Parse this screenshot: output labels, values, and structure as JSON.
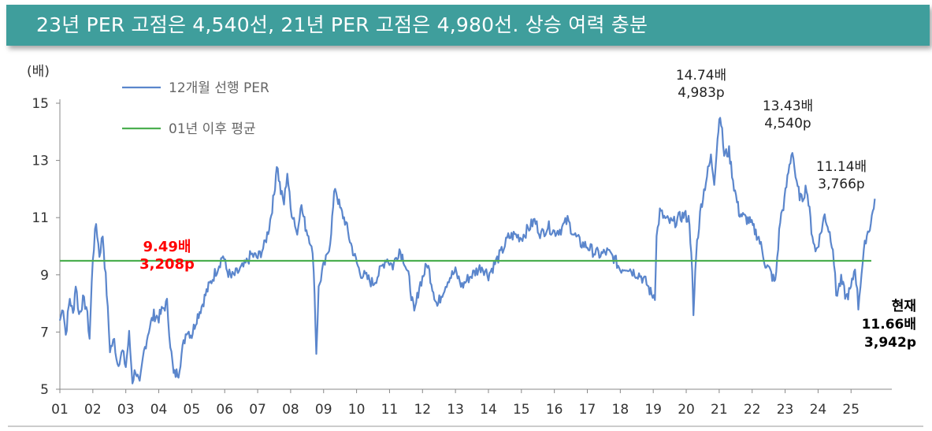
{
  "title": "23년 PER 고점은 4,540선, 21년 PER 고점은 4,980선. 상승 여력 충분",
  "chart_data": {
    "type": "line",
    "ylabel": "(배)",
    "ylim": [
      5,
      15
    ],
    "yticks": [
      "5",
      "7",
      "9",
      "11",
      "13",
      "15"
    ],
    "xticks": [
      "01",
      "02",
      "03",
      "04",
      "05",
      "06",
      "07",
      "08",
      "09",
      "10",
      "11",
      "12",
      "13",
      "14",
      "15",
      "16",
      "17",
      "18",
      "19",
      "20",
      "21",
      "22",
      "23",
      "24",
      "25"
    ],
    "series": [
      {
        "name": "12개월 선행 PER",
        "color": "#5b86cc",
        "points": [
          [
            2001.0,
            7.4
          ],
          [
            2001.1,
            7.9
          ],
          [
            2001.18,
            6.9
          ],
          [
            2001.3,
            8.2
          ],
          [
            2001.4,
            7.6
          ],
          [
            2001.48,
            8.7
          ],
          [
            2001.58,
            7.6
          ],
          [
            2001.7,
            8.1
          ],
          [
            2001.8,
            7.9
          ],
          [
            2001.9,
            6.8
          ],
          [
            2002.0,
            9.6
          ],
          [
            2002.1,
            10.8
          ],
          [
            2002.2,
            9.7
          ],
          [
            2002.3,
            10.4
          ],
          [
            2002.42,
            8.4
          ],
          [
            2002.52,
            6.4
          ],
          [
            2002.65,
            6.7
          ],
          [
            2002.75,
            5.9
          ],
          [
            2002.9,
            6.3
          ],
          [
            2003.0,
            5.8
          ],
          [
            2003.1,
            6.9
          ],
          [
            2003.2,
            5.3
          ],
          [
            2003.3,
            5.7
          ],
          [
            2003.42,
            5.1
          ],
          [
            2003.55,
            6.3
          ],
          [
            2003.7,
            7.1
          ],
          [
            2003.85,
            7.6
          ],
          [
            2004.0,
            7.5
          ],
          [
            2004.12,
            7.8
          ],
          [
            2004.25,
            8.0
          ],
          [
            2004.35,
            6.6
          ],
          [
            2004.45,
            5.5
          ],
          [
            2004.6,
            5.6
          ],
          [
            2004.72,
            6.4
          ],
          [
            2004.85,
            7.1
          ],
          [
            2005.0,
            6.9
          ],
          [
            2005.15,
            7.5
          ],
          [
            2005.3,
            7.9
          ],
          [
            2005.45,
            8.4
          ],
          [
            2005.6,
            8.8
          ],
          [
            2005.8,
            9.3
          ],
          [
            2005.95,
            9.7
          ],
          [
            2006.05,
            9.2
          ],
          [
            2006.2,
            8.9
          ],
          [
            2006.4,
            9.1
          ],
          [
            2006.6,
            9.3
          ],
          [
            2006.8,
            9.7
          ],
          [
            2007.0,
            9.6
          ],
          [
            2007.2,
            10.0
          ],
          [
            2007.35,
            10.7
          ],
          [
            2007.5,
            11.8
          ],
          [
            2007.58,
            12.9
          ],
          [
            2007.7,
            11.9
          ],
          [
            2007.8,
            11.5
          ],
          [
            2007.9,
            12.6
          ],
          [
            2008.0,
            11.3
          ],
          [
            2008.1,
            11.0
          ],
          [
            2008.2,
            10.4
          ],
          [
            2008.3,
            11.5
          ],
          [
            2008.45,
            10.7
          ],
          [
            2008.6,
            10.2
          ],
          [
            2008.7,
            9.3
          ],
          [
            2008.78,
            6.3
          ],
          [
            2008.85,
            8.5
          ],
          [
            2008.95,
            9.1
          ],
          [
            2009.1,
            9.6
          ],
          [
            2009.2,
            10.2
          ],
          [
            2009.35,
            12.1
          ],
          [
            2009.5,
            11.3
          ],
          [
            2009.65,
            10.9
          ],
          [
            2009.8,
            10.2
          ],
          [
            2009.95,
            9.6
          ],
          [
            2010.1,
            9.1
          ],
          [
            2010.3,
            8.9
          ],
          [
            2010.5,
            8.7
          ],
          [
            2010.7,
            9.1
          ],
          [
            2010.9,
            9.6
          ],
          [
            2011.1,
            9.3
          ],
          [
            2011.3,
            9.9
          ],
          [
            2011.45,
            9.5
          ],
          [
            2011.6,
            8.8
          ],
          [
            2011.75,
            7.6
          ],
          [
            2011.9,
            8.6
          ],
          [
            2012.0,
            8.9
          ],
          [
            2012.15,
            9.4
          ],
          [
            2012.3,
            8.6
          ],
          [
            2012.45,
            7.9
          ],
          [
            2012.6,
            8.4
          ],
          [
            2012.8,
            8.9
          ],
          [
            2013.0,
            9.1
          ],
          [
            2013.2,
            8.6
          ],
          [
            2013.4,
            8.9
          ],
          [
            2013.6,
            9.1
          ],
          [
            2013.8,
            9.3
          ],
          [
            2014.0,
            9.0
          ],
          [
            2014.2,
            9.4
          ],
          [
            2014.4,
            9.8
          ],
          [
            2014.6,
            10.3
          ],
          [
            2014.8,
            10.4
          ],
          [
            2015.0,
            10.3
          ],
          [
            2015.2,
            10.6
          ],
          [
            2015.4,
            10.9
          ],
          [
            2015.6,
            10.4
          ],
          [
            2015.8,
            10.7
          ],
          [
            2016.0,
            10.5
          ],
          [
            2016.2,
            10.6
          ],
          [
            2016.4,
            10.9
          ],
          [
            2016.6,
            10.4
          ],
          [
            2016.8,
            10.1
          ],
          [
            2017.0,
            10.0
          ],
          [
            2017.2,
            9.8
          ],
          [
            2017.4,
            9.7
          ],
          [
            2017.6,
            9.8
          ],
          [
            2017.8,
            9.6
          ],
          [
            2018.0,
            9.2
          ],
          [
            2018.2,
            9.3
          ],
          [
            2018.4,
            9.1
          ],
          [
            2018.6,
            9.0
          ],
          [
            2018.8,
            8.7
          ],
          [
            2018.95,
            8.3
          ],
          [
            2019.05,
            8.3
          ],
          [
            2019.1,
            10.3
          ],
          [
            2019.2,
            11.2
          ],
          [
            2019.4,
            10.9
          ],
          [
            2019.6,
            10.8
          ],
          [
            2019.8,
            11.0
          ],
          [
            2019.95,
            11.1
          ],
          [
            2020.1,
            10.9
          ],
          [
            2020.18,
            9.0
          ],
          [
            2020.22,
            7.6
          ],
          [
            2020.3,
            9.8
          ],
          [
            2020.45,
            11.4
          ],
          [
            2020.6,
            12.3
          ],
          [
            2020.75,
            13.1
          ],
          [
            2020.85,
            12.3
          ],
          [
            2020.95,
            13.8
          ],
          [
            2021.03,
            14.7
          ],
          [
            2021.15,
            13.2
          ],
          [
            2021.3,
            13.3
          ],
          [
            2021.45,
            12.1
          ],
          [
            2021.6,
            11.2
          ],
          [
            2021.75,
            11.0
          ],
          [
            2021.9,
            10.9
          ],
          [
            2022.05,
            10.6
          ],
          [
            2022.2,
            10.3
          ],
          [
            2022.4,
            9.4
          ],
          [
            2022.55,
            9.1
          ],
          [
            2022.7,
            8.7
          ],
          [
            2022.85,
            10.9
          ],
          [
            2022.98,
            11.6
          ],
          [
            2023.1,
            12.6
          ],
          [
            2023.22,
            13.4
          ],
          [
            2023.35,
            12.1
          ],
          [
            2023.5,
            11.6
          ],
          [
            2023.65,
            12.1
          ],
          [
            2023.8,
            10.6
          ],
          [
            2023.92,
            9.8
          ],
          [
            2024.05,
            10.3
          ],
          [
            2024.2,
            11.1
          ],
          [
            2024.32,
            10.6
          ],
          [
            2024.45,
            10.0
          ],
          [
            2024.55,
            8.3
          ],
          [
            2024.7,
            8.8
          ],
          [
            2024.85,
            8.2
          ],
          [
            2025.0,
            8.5
          ],
          [
            2025.12,
            9.3
          ],
          [
            2025.22,
            7.9
          ],
          [
            2025.32,
            9.1
          ],
          [
            2025.45,
            10.3
          ],
          [
            2025.6,
            10.8
          ],
          [
            2025.72,
            11.66
          ]
        ]
      },
      {
        "name": "01년 이후 평균",
        "color": "#4caf50",
        "value": 9.49
      }
    ],
    "annotations": [
      {
        "lines": [
          "9.49배",
          "3,208p"
        ],
        "color": "#ff0000"
      },
      {
        "lines": [
          "14.74배",
          "4,983p"
        ],
        "color": "#222222"
      },
      {
        "lines": [
          "13.43배",
          "4,540p"
        ],
        "color": "#222222"
      },
      {
        "lines": [
          "11.14배",
          "3,766p"
        ],
        "color": "#222222"
      },
      {
        "lines": [
          "현재",
          "11.66배",
          "3,942p"
        ],
        "color": "#000000"
      }
    ]
  }
}
